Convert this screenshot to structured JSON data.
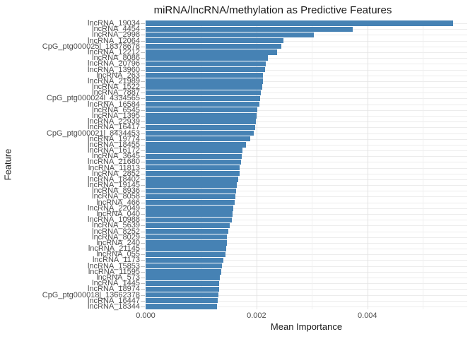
{
  "chart_data": {
    "type": "bar",
    "orientation": "horizontal",
    "title": "miRNA/lncRNA/methylation as Predictive Features",
    "xlabel": "Mean Importance",
    "ylabel": "Feature",
    "xlim": [
      0,
      0.0058
    ],
    "x_major_ticks": [
      0,
      0.002,
      0.004
    ],
    "x_minor_ticks": [
      0.001,
      0.003,
      0.005
    ],
    "x_tick_labels": [
      "0.000",
      "0.002",
      "0.004"
    ],
    "legend": "none",
    "grid": "on",
    "bar_color": "#4682B4",
    "grid_major_color": "#e2e2e2",
    "grid_minor_color": "#f0f0f0",
    "grid_row_color": "#ececec",
    "categories": [
      "lncRNA_19034",
      "lncRNA_4454",
      "lncRNA_2998",
      "lncRNA_12064",
      "CpG_ptg000025l_18378678",
      "lncRNA_12212",
      "lncRNA_8086",
      "lncRNA_20796",
      "lncRNA_13960",
      "lncRNA_263",
      "lncRNA_21989",
      "lncRNA_1522",
      "lncRNA_7887",
      "CpG_ptg000024l_4334565",
      "lncRNA_16584",
      "lncRNA_6545",
      "lncRNA_1395",
      "lncRNA_22939",
      "lncRNA_16417",
      "CpG_ptg000021l_8434453",
      "lncRNA_19774",
      "lncRNA_18455",
      "lncRNA_16172",
      "lncRNA_3645",
      "lncRNA_21680",
      "lncRNA_11813",
      "lncRNA_2852",
      "lncRNA_18402",
      "lncRNA_19145",
      "lncRNA_8936",
      "lncRNA_8058",
      "lncRNA_466",
      "lncRNA_22049",
      "lncRNA_040",
      "lncRNA_10988",
      "lncRNA_5639",
      "lncRNA_8252",
      "lncRNA_8029",
      "lncRNA_240",
      "lncRNA_21145",
      "lncRNA_055",
      "lncRNA_1173",
      "lncRNA_15853",
      "lncRNA_11595",
      "lncRNA_573",
      "lncRNA_1445",
      "lncRNA_18974",
      "CpG_ptg000018l_13662378",
      "lncRNA_16447",
      "lncRNA_18344"
    ],
    "values": [
      0.00555,
      0.00373,
      0.00303,
      0.00248,
      0.00245,
      0.00237,
      0.00221,
      0.00217,
      0.00216,
      0.00212,
      0.00211,
      0.0021,
      0.00208,
      0.00207,
      0.00205,
      0.00202,
      0.002,
      0.00199,
      0.00198,
      0.00195,
      0.00189,
      0.00181,
      0.00175,
      0.00173,
      0.00172,
      0.0017,
      0.00169,
      0.00167,
      0.00164,
      0.00163,
      0.00162,
      0.00161,
      0.00158,
      0.00157,
      0.00155,
      0.00152,
      0.00149,
      0.00147,
      0.00146,
      0.00145,
      0.00144,
      0.0014,
      0.00138,
      0.00136,
      0.00134,
      0.00133,
      0.00132,
      0.00131,
      0.0013,
      0.00129
    ]
  }
}
